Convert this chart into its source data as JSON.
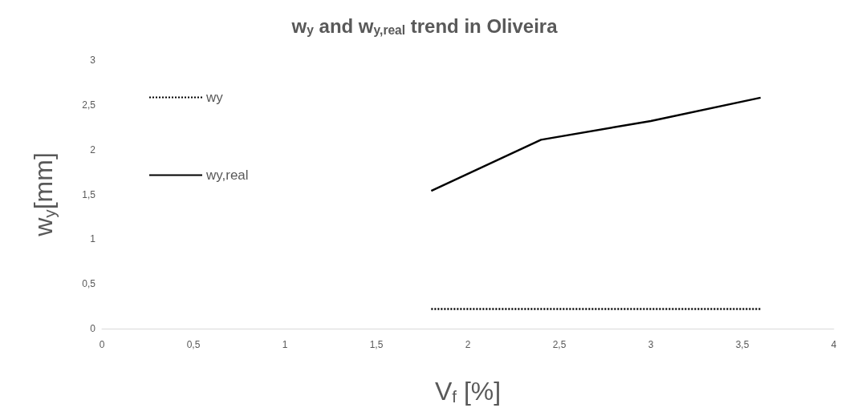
{
  "chart_data": {
    "type": "line",
    "title": "w$_{y}$ and w$_{y,real}$ trend in Oliveira",
    "xlabel": "V$_{f}$ [%]",
    "ylabel": "w$_{y}$[mm]",
    "x": [
      1.8,
      2.4,
      3,
      3.6
    ],
    "series": [
      {
        "name": "wy",
        "color": "#000000",
        "line_style": "dotted",
        "values": [
          0.22,
          0.22,
          0.22,
          0.22
        ]
      },
      {
        "name": "wy,real",
        "color": "#000000",
        "line_style": "solid",
        "values": [
          1.54,
          2.11,
          2.32,
          2.58
        ]
      }
    ],
    "xlim": [
      0,
      4
    ],
    "xticks": [
      0,
      {
        "value": 0.5,
        "label": "0,5"
      },
      1,
      {
        "value": 1.5,
        "label": "1,5"
      },
      2,
      {
        "value": 2.5,
        "label": "2,5"
      },
      3,
      {
        "value": 3.5,
        "label": "3,5"
      },
      4
    ],
    "ylim": [
      0,
      3
    ],
    "yticks": [
      0,
      {
        "value": 0.5,
        "label": "0,5"
      },
      1,
      {
        "value": 1.5,
        "label": "1,5"
      },
      2,
      {
        "value": 2.5,
        "label": "2,5"
      },
      3
    ],
    "legend": "top left",
    "marker": "none"
  }
}
